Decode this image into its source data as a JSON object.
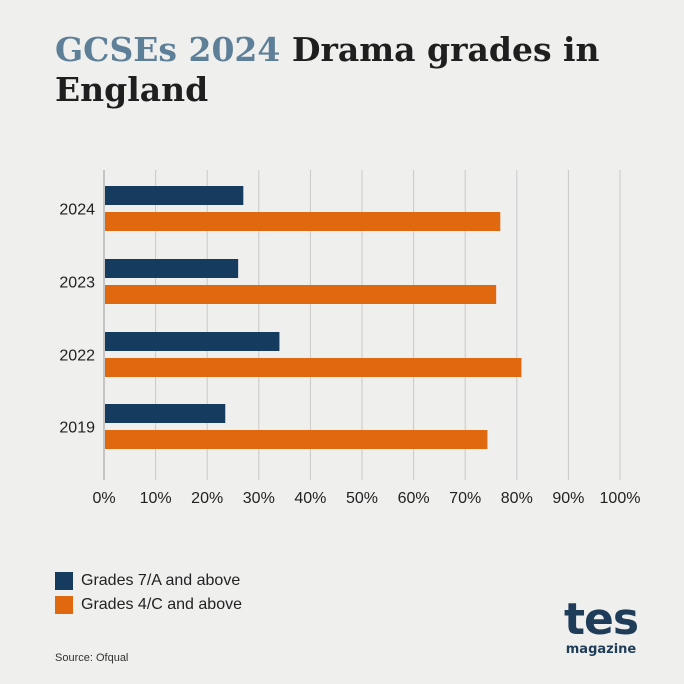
{
  "header": {
    "title_accent": "GCSEs 2024",
    "title_rest": "Drama grades in England"
  },
  "chart_data": {
    "type": "bar",
    "orientation": "horizontal",
    "title": "GCSEs 2024 Drama grades in England",
    "categories": [
      "2024",
      "2023",
      "2022",
      "2019"
    ],
    "series": [
      {
        "name": "Grades 7/A and above",
        "color": "#153c5e",
        "values": [
          27,
          26,
          34,
          23.5
        ]
      },
      {
        "name": "Grades 4/C and above",
        "color": "#e0680f",
        "values": [
          76.8,
          76,
          80.9,
          74.3
        ]
      }
    ],
    "xlim": [
      0,
      100
    ],
    "x_ticks": [
      "0%",
      "10%",
      "20%",
      "30%",
      "40%",
      "50%",
      "60%",
      "70%",
      "80%",
      "90%",
      "100%"
    ],
    "grid": "vertical",
    "legend_position": "bottom-left"
  },
  "footer": {
    "source": "Source: Ofqual",
    "logo_main": "tes",
    "logo_sub": "magazine"
  }
}
